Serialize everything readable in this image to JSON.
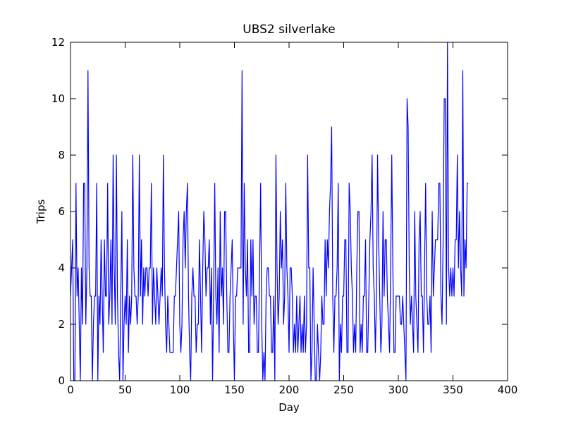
{
  "chart_data": {
    "type": "line",
    "title": "UBS2 silverlake",
    "x_label": "Day",
    "y_label": "Trips",
    "x": [
      0,
      1,
      2,
      3,
      4,
      5,
      6,
      7,
      8,
      9,
      10,
      11,
      12,
      13,
      14,
      15,
      16,
      17,
      18,
      19,
      20,
      21,
      22,
      23,
      24,
      25,
      26,
      27,
      28,
      29,
      30,
      31,
      32,
      33,
      34,
      35,
      36,
      37,
      38,
      39,
      40,
      41,
      42,
      43,
      44,
      45,
      46,
      47,
      48,
      49,
      50,
      51,
      52,
      53,
      54,
      55,
      56,
      57,
      58,
      59,
      60,
      61,
      62,
      63,
      64,
      65,
      66,
      67,
      68,
      69,
      70,
      71,
      72,
      73,
      74,
      75,
      76,
      77,
      78,
      79,
      80,
      81,
      82,
      83,
      84,
      85,
      86,
      87,
      88,
      89,
      90,
      91,
      92,
      93,
      94,
      95,
      96,
      97,
      98,
      99,
      100,
      101,
      102,
      103,
      104,
      105,
      106,
      107,
      108,
      109,
      110,
      111,
      112,
      113,
      114,
      115,
      116,
      117,
      118,
      119,
      120,
      121,
      122,
      123,
      124,
      125,
      126,
      127,
      128,
      129,
      130,
      131,
      132,
      133,
      134,
      135,
      136,
      137,
      138,
      139,
      140,
      141,
      142,
      143,
      144,
      145,
      146,
      147,
      148,
      149,
      150,
      151,
      152,
      153,
      154,
      155,
      156,
      157,
      158,
      159,
      160,
      161,
      162,
      163,
      164,
      165,
      166,
      167,
      168,
      169,
      170,
      171,
      172,
      173,
      174,
      175,
      176,
      177,
      178,
      179,
      180,
      181,
      182,
      183,
      184,
      185,
      186,
      187,
      188,
      189,
      190,
      191,
      192,
      193,
      194,
      195,
      196,
      197,
      198,
      199,
      200,
      201,
      202,
      203,
      204,
      205,
      206,
      207,
      208,
      209,
      210,
      211,
      212,
      213,
      214,
      215,
      216,
      217,
      218,
      219,
      220,
      221,
      222,
      223,
      224,
      225,
      226,
      227,
      228,
      229,
      230,
      231,
      232,
      233,
      234,
      235,
      236,
      237,
      238,
      239,
      240,
      241,
      242,
      243,
      244,
      245,
      246,
      247,
      248,
      249,
      250,
      251,
      252,
      253,
      254,
      255,
      256,
      257,
      258,
      259,
      260,
      261,
      262,
      263,
      264,
      265,
      266,
      267,
      268,
      269,
      270,
      271,
      272,
      273,
      274,
      275,
      276,
      277,
      278,
      279,
      280,
      281,
      282,
      283,
      284,
      285,
      286,
      287,
      288,
      289,
      290,
      291,
      292,
      293,
      294,
      295,
      296,
      297,
      298,
      299,
      300,
      301,
      302,
      303,
      304,
      305,
      306,
      307,
      308,
      309,
      310,
      311,
      312,
      313,
      314,
      315,
      316,
      317,
      318,
      319,
      320,
      321,
      322,
      323,
      324,
      325,
      326,
      327,
      328,
      329,
      330,
      331,
      332,
      333,
      334,
      335,
      336,
      337,
      338,
      339,
      340,
      341,
      342,
      343,
      344,
      345,
      346,
      347,
      348,
      349,
      350,
      351,
      352,
      353,
      354,
      355,
      356,
      357,
      358,
      359,
      360,
      361,
      362,
      363,
      364
    ],
    "series": [
      {
        "color": "#0000ff",
        "values": [
          3,
          4,
          5,
          0,
          0,
          7,
          3,
          4,
          2,
          0,
          4,
          2,
          7,
          7,
          2,
          4,
          11,
          4,
          3,
          3,
          0,
          2,
          3,
          3,
          7,
          0,
          3,
          2,
          5,
          3,
          1,
          5,
          3,
          3,
          7,
          2,
          3,
          5,
          2,
          8,
          4,
          2,
          8,
          3,
          1,
          0,
          3,
          6,
          0,
          2,
          3,
          2,
          5,
          1,
          3,
          2,
          3,
          8,
          4,
          3,
          3,
          2,
          3,
          8,
          3,
          5,
          2,
          4,
          3,
          4,
          4,
          3,
          4,
          4,
          7,
          2,
          4,
          3,
          2,
          4,
          3,
          2,
          3,
          4,
          3,
          8,
          4,
          2,
          1,
          3,
          2,
          1,
          1,
          1,
          1,
          3,
          3,
          4,
          5,
          6,
          2,
          1,
          2,
          5,
          6,
          4,
          6,
          7,
          3,
          1,
          0,
          3,
          4,
          3,
          3,
          1,
          2,
          2,
          5,
          3,
          1,
          4,
          6,
          5,
          3,
          4,
          4,
          5,
          2,
          4,
          0,
          3,
          7,
          3,
          2,
          4,
          1,
          6,
          3,
          4,
          2,
          6,
          6,
          3,
          1,
          1,
          3,
          4,
          5,
          2,
          0,
          3,
          3,
          4,
          4,
          4,
          4,
          11,
          2,
          7,
          4,
          3,
          5,
          1,
          1,
          5,
          3,
          5,
          2,
          3,
          3,
          1,
          1,
          4,
          7,
          2,
          0,
          1,
          0,
          3,
          4,
          4,
          3,
          3,
          1,
          1,
          3,
          0,
          8,
          4,
          2,
          3,
          6,
          4,
          5,
          2,
          3,
          7,
          4,
          3,
          1,
          4,
          4,
          3,
          1,
          2,
          1,
          3,
          1,
          2,
          3,
          1,
          2,
          1,
          3,
          1,
          2,
          8,
          4,
          4,
          0,
          1,
          4,
          2,
          0,
          0,
          2,
          1,
          0,
          1,
          3,
          2,
          2,
          5,
          3,
          5,
          4,
          6,
          7,
          9,
          3,
          1,
          3,
          3,
          4,
          7,
          0,
          2,
          1,
          3,
          3,
          5,
          5,
          1,
          1,
          7,
          6,
          4,
          3,
          1,
          2,
          1,
          4,
          6,
          6,
          1,
          2,
          1,
          3,
          3,
          5,
          1,
          1,
          3,
          5,
          6,
          8,
          4,
          3,
          1,
          3,
          8,
          5,
          3,
          1,
          2,
          6,
          3,
          5,
          5,
          3,
          2,
          1,
          4,
          8,
          4,
          1,
          1,
          3,
          3,
          3,
          3,
          2,
          2,
          3,
          2,
          1,
          0,
          10,
          9,
          4,
          2,
          3,
          2,
          1,
          6,
          3,
          2,
          1,
          5,
          6,
          3,
          3,
          1,
          4,
          7,
          3,
          2,
          2,
          3,
          1,
          6,
          3,
          4,
          5,
          5,
          5,
          7,
          7,
          3,
          2,
          5,
          10,
          10,
          2,
          12,
          4,
          3,
          4,
          3,
          4,
          3,
          5,
          5,
          8,
          4,
          6,
          4,
          3,
          11,
          3,
          5,
          4,
          7,
          7
        ]
      }
    ],
    "xlim": [
      0,
      400
    ],
    "xticks": [
      0,
      50,
      100,
      150,
      200,
      250,
      300,
      350,
      400
    ],
    "ylim": [
      0,
      12
    ],
    "yticks": [
      0,
      2,
      4,
      6,
      8,
      10,
      12
    ]
  }
}
